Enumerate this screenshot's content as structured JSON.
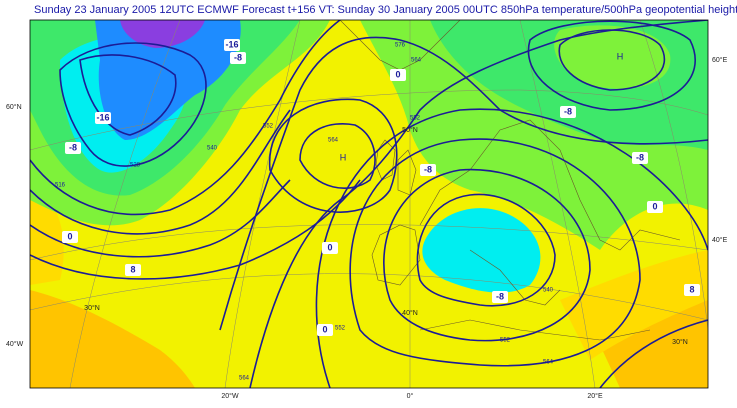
{
  "header": {
    "title": "Sunday 23 January 2005 12UTC ECMWF  Forecast t+156 VT: Sunday 30 January 2005 00UTC 850hPa temperature/500hPa  geopotential height"
  },
  "geo_labels": [
    "60°N",
    "40°W",
    "60°E",
    "40°E",
    "20°W",
    "0°",
    "20°E",
    "50°N",
    "40°N",
    "30°N",
    "30°N"
  ],
  "pressure_centers": [
    "H",
    "H"
  ],
  "temperature_labels": [
    -16,
    -8,
    0,
    8,
    0,
    0,
    -8,
    -8,
    0,
    8,
    -8,
    0,
    -8,
    -16,
    -8
  ],
  "height_labels": [
    516,
    528,
    540,
    552,
    564,
    576,
    552,
    564,
    540,
    552,
    564,
    552,
    564
  ]
}
